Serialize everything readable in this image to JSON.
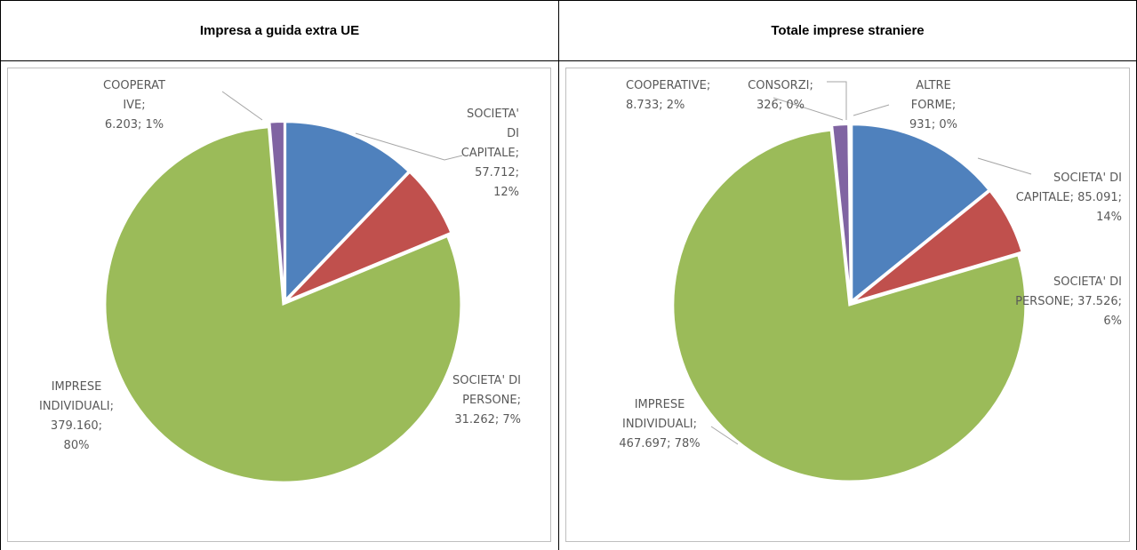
{
  "chart_data": [
    {
      "type": "pie",
      "title": "Impresa a guida extra UE",
      "values": [
        57712,
        31262,
        379160,
        6203
      ],
      "value_labels": [
        "SOCIETA' DI CAPITALE; 57.712; 12%",
        "SOCIETA' DI PERSONE; 31.262; 7%",
        "IMPRESE INDIVIDUALI; 379.160; 80%",
        "COOPERATIVE; 6.203; 1%"
      ],
      "colors": [
        "#4f81bd",
        "#c0504d",
        "#9bbb59",
        "#8064a2"
      ]
    },
    {
      "type": "pie",
      "title": "Totale imprese straniere",
      "values": [
        85091,
        37526,
        467697,
        8733,
        326,
        931
      ],
      "value_labels": [
        "SOCIETA' DI CAPITALE; 85.091; 14%",
        "SOCIETA' DI PERSONE; 37.526; 6%",
        "IMPRESE INDIVIDUALI; 467.697; 78%",
        "COOPERATIVE; 8.733; 2%",
        "CONSORZI; 326; 0%",
        "ALTRE FORME; 931; 0%"
      ],
      "colors": [
        "#4f81bd",
        "#c0504d",
        "#9bbb59",
        "#8064a2",
        "#4bacc6",
        "#f79646"
      ]
    }
  ]
}
